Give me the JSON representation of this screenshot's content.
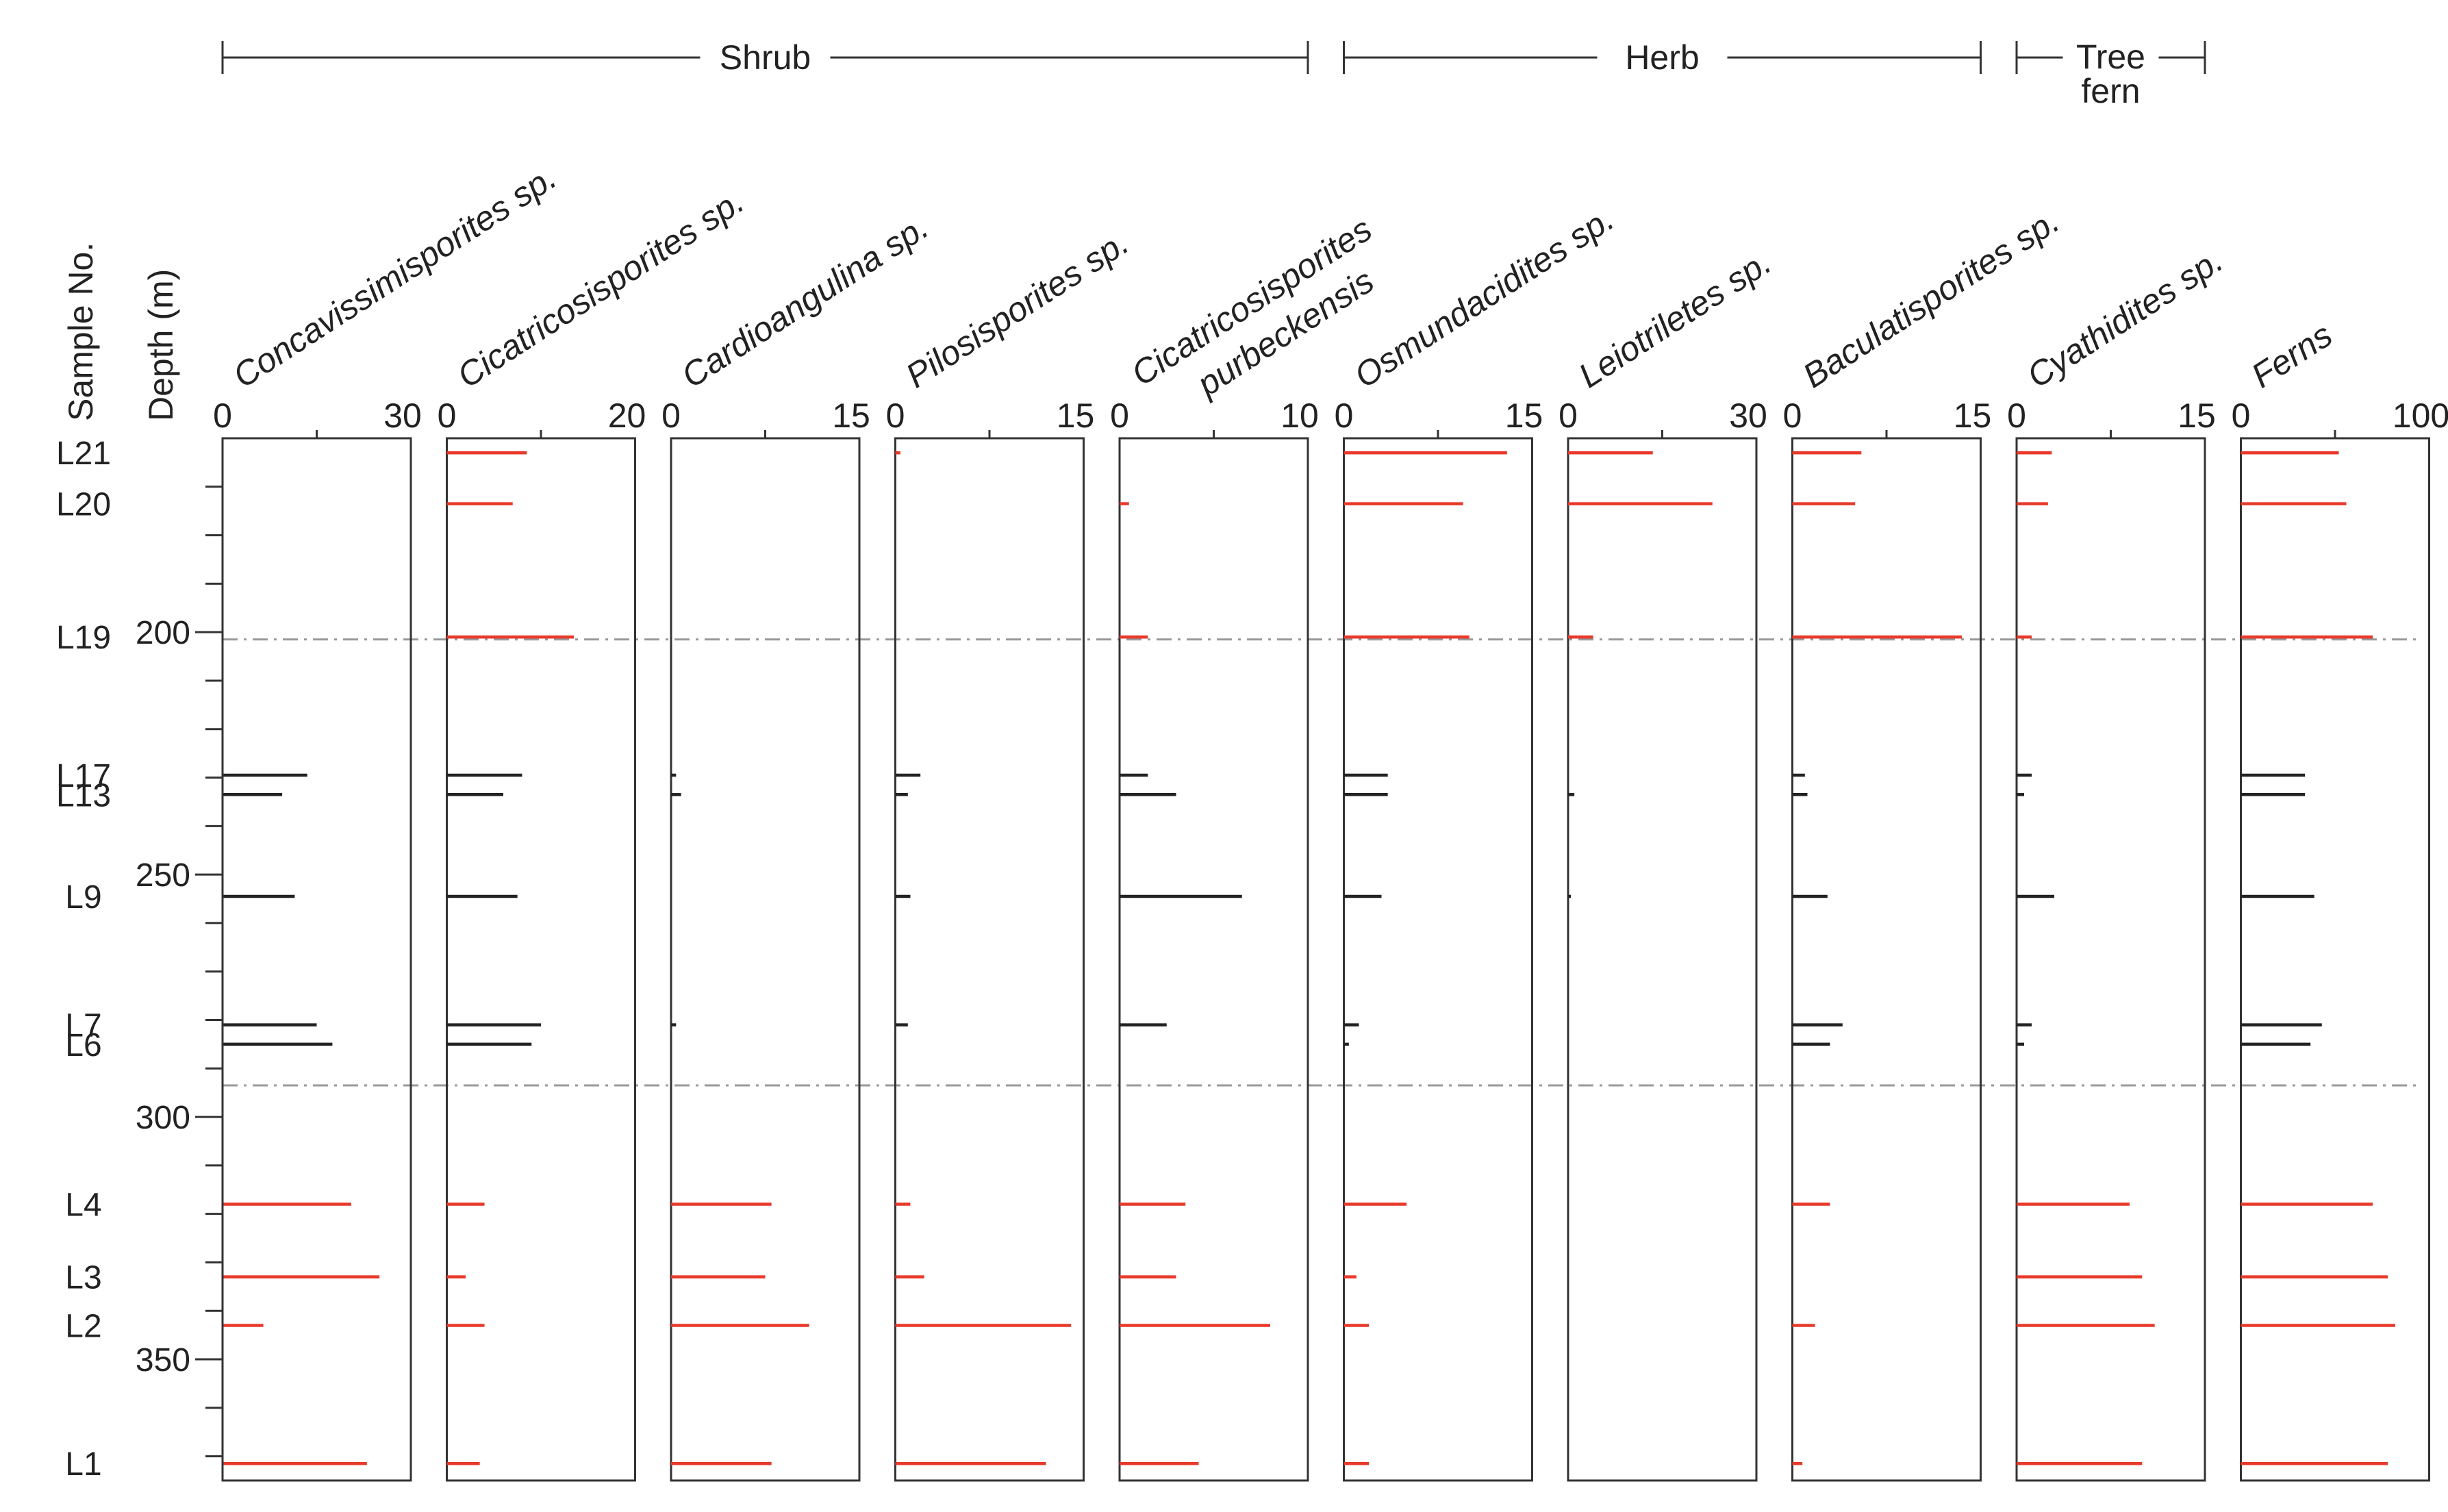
{
  "chart_data": {
    "type": "bar",
    "orientation": "horizontal",
    "title": "",
    "ylabel": "Depth (m)",
    "sample_label": "Sample No.",
    "y_range": [
      160,
      375
    ],
    "y_ticks": [
      200,
      250,
      300,
      350
    ],
    "boundary_depths": [
      201.5,
      293.5
    ],
    "groups": [
      {
        "name": "Shrub",
        "start": 0,
        "end": 4
      },
      {
        "name": "Herb",
        "start": 5,
        "end": 7
      },
      {
        "name": "Tree fern",
        "start": 8,
        "end": 8
      }
    ],
    "samples": [
      {
        "id": "L21",
        "depth": 163,
        "color": "#e8392a"
      },
      {
        "id": "L20",
        "depth": 173.5,
        "color": "#e8392a"
      },
      {
        "id": "L19",
        "depth": 201,
        "color": "#e8392a"
      },
      {
        "id": "L17",
        "depth": 229.5,
        "color": "#222222"
      },
      {
        "id": "L13",
        "depth": 233.5,
        "color": "#222222"
      },
      {
        "id": "L9",
        "depth": 254.5,
        "color": "#222222"
      },
      {
        "id": "L7",
        "depth": 281,
        "color": "#222222"
      },
      {
        "id": "L6",
        "depth": 285,
        "color": "#222222"
      },
      {
        "id": "L4",
        "depth": 318,
        "color": "#e8392a"
      },
      {
        "id": "L3",
        "depth": 333,
        "color": "#e8392a"
      },
      {
        "id": "L2",
        "depth": 343,
        "color": "#e8392a"
      },
      {
        "id": "L1",
        "depth": 371.5,
        "color": "#e8392a"
      }
    ],
    "series": [
      {
        "name": "Concavissimisporites sp.",
        "max": 30,
        "ticks": [
          "0",
          "30"
        ],
        "values": [
          0,
          0,
          0,
          13.5,
          9.5,
          11.5,
          15,
          17.5,
          20.5,
          25,
          6.5,
          23
        ]
      },
      {
        "name": "Cicatricosisporites sp.",
        "max": 20,
        "ticks": [
          "0",
          "20"
        ],
        "values": [
          8.5,
          7,
          13.5,
          8,
          6,
          7.5,
          10,
          9,
          4,
          2,
          4,
          3.5
        ]
      },
      {
        "name": "Cardioangulina sp.",
        "max": 15,
        "ticks": [
          "0",
          "15"
        ],
        "values": [
          0,
          0,
          0,
          0.4,
          0.8,
          0,
          0.4,
          0,
          8,
          7.5,
          11,
          8
        ]
      },
      {
        "name": "Pilosisporites sp.",
        "max": 15,
        "ticks": [
          "0",
          "15"
        ],
        "values": [
          0.4,
          0,
          0,
          2,
          1,
          1.2,
          1,
          0,
          1.2,
          2.3,
          14,
          12
        ]
      },
      {
        "name": "Cicatricosisporites purbeckensis",
        "max": 10,
        "ticks": [
          "0",
          "10"
        ],
        "values": [
          0,
          0.5,
          1.5,
          1.5,
          3,
          6.5,
          2.5,
          0,
          3.5,
          3,
          8,
          4.2
        ]
      },
      {
        "name": "Osmundacidites sp.",
        "max": 15,
        "ticks": [
          "0",
          "15"
        ],
        "values": [
          13,
          9.5,
          10,
          3.5,
          3.5,
          3,
          1.2,
          0.4,
          5,
          1,
          2,
          2
        ]
      },
      {
        "name": "Leiotriletes sp.",
        "max": 30,
        "ticks": [
          "0",
          "30"
        ],
        "values": [
          13.5,
          23,
          4,
          0,
          1,
          0.3,
          0,
          0,
          0,
          0,
          0,
          0
        ]
      },
      {
        "name": "Baculatisporites sp.",
        "max": 15,
        "ticks": [
          "0",
          "15"
        ],
        "values": [
          5.5,
          5,
          13.5,
          1,
          1.2,
          2.8,
          4,
          3,
          3,
          0,
          1.8,
          0.8
        ]
      },
      {
        "name": "Cyathidites sp.",
        "max": 15,
        "ticks": [
          "0",
          "15"
        ],
        "values": [
          2.8,
          2.5,
          1.2,
          1.2,
          0.6,
          3,
          1.2,
          0.6,
          9,
          10,
          11,
          10
        ]
      },
      {
        "name": "Ferns",
        "max": 100,
        "ticks": [
          "0",
          "100"
        ],
        "values": [
          52,
          56,
          70,
          34,
          34,
          39,
          43,
          37,
          70,
          78,
          82,
          78
        ]
      }
    ]
  }
}
